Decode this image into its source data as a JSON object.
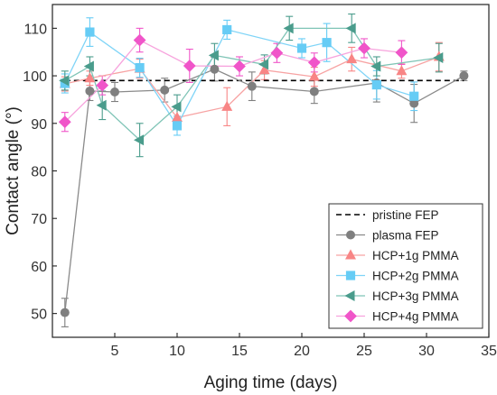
{
  "chart_data": {
    "type": "scatter",
    "title": "",
    "xlabel": "Aging time (days)",
    "ylabel": "Contact angle (°)",
    "xlim": [
      0,
      35
    ],
    "ylim": [
      45,
      115
    ],
    "xticks": [
      5,
      10,
      15,
      20,
      25,
      30,
      35
    ],
    "yticks": [
      50,
      60,
      70,
      80,
      90,
      100,
      110
    ],
    "grid": false,
    "legend_position": "bottom-right",
    "series": [
      {
        "name": "pristine FEP",
        "style": "dashed-line",
        "color": "#000000",
        "x": [
          1,
          33
        ],
        "y": [
          99,
          99
        ],
        "err": []
      },
      {
        "name": "plasma FEP",
        "style": "line-marker",
        "marker": "circle",
        "color": "#7f7f7f",
        "line_color": "#8a8a8a",
        "x": [
          1,
          3,
          5,
          9,
          13,
          16,
          21,
          26,
          29,
          33
        ],
        "y": [
          50.2,
          96.8,
          96.6,
          97,
          101.4,
          97.8,
          96.7,
          98.5,
          94.2,
          100
        ],
        "err": [
          3,
          2,
          2,
          2.5,
          2.5,
          3,
          2.5,
          4,
          4,
          1
        ]
      },
      {
        "name": "HCP+1g PMMA",
        "style": "line-marker",
        "marker": "triangle",
        "color": "#f88585",
        "line_color": "#f7a3a3",
        "x": [
          1,
          3,
          7,
          10,
          14,
          17,
          21,
          24,
          28,
          31
        ],
        "y": [
          98.3,
          99.5,
          101.5,
          91.2,
          93.5,
          101.2,
          99.8,
          103.5,
          101,
          104
        ],
        "err": [
          1.5,
          1.5,
          2,
          2,
          4,
          2,
          2,
          2.5,
          1.5,
          3
        ]
      },
      {
        "name": "HCP+2g PMMA",
        "style": "line-marker",
        "marker": "square",
        "color": "#66ccf5",
        "line_color": "#7fd4f7",
        "x": [
          1,
          3,
          7,
          10,
          14,
          20,
          22,
          26,
          29
        ],
        "y": [
          98.4,
          109.2,
          101.7,
          89.5,
          109.7,
          105.8,
          107,
          98.1,
          95.7
        ],
        "err": [
          2,
          3,
          2,
          2,
          2,
          2,
          4,
          3,
          3
        ]
      },
      {
        "name": "HCP+3g PMMA",
        "style": "line-marker",
        "marker": "triangle-left",
        "color": "#4a9c8c",
        "line_color": "#7fc4b6",
        "x": [
          1,
          3,
          4,
          7,
          10,
          13,
          17,
          19,
          24,
          26,
          31
        ],
        "y": [
          99,
          102,
          93.8,
          86.5,
          93.5,
          104.3,
          102.4,
          110,
          110,
          102,
          103.8
        ],
        "err": [
          2,
          2,
          3,
          3.5,
          2.5,
          2.5,
          2,
          2.5,
          3,
          2,
          3
        ]
      },
      {
        "name": "HCP+4g PMMA",
        "style": "line-marker",
        "marker": "diamond",
        "color": "#f055c9",
        "line_color": "#f7a3dd",
        "x": [
          1,
          4,
          7,
          11,
          15,
          18,
          21,
          25,
          28
        ],
        "y": [
          90.3,
          98,
          107.5,
          102.1,
          102,
          104.8,
          102.8,
          105.8,
          104.9
        ],
        "err": [
          2,
          2,
          2.5,
          3.5,
          2,
          2,
          2,
          2,
          2.5
        ]
      }
    ]
  }
}
